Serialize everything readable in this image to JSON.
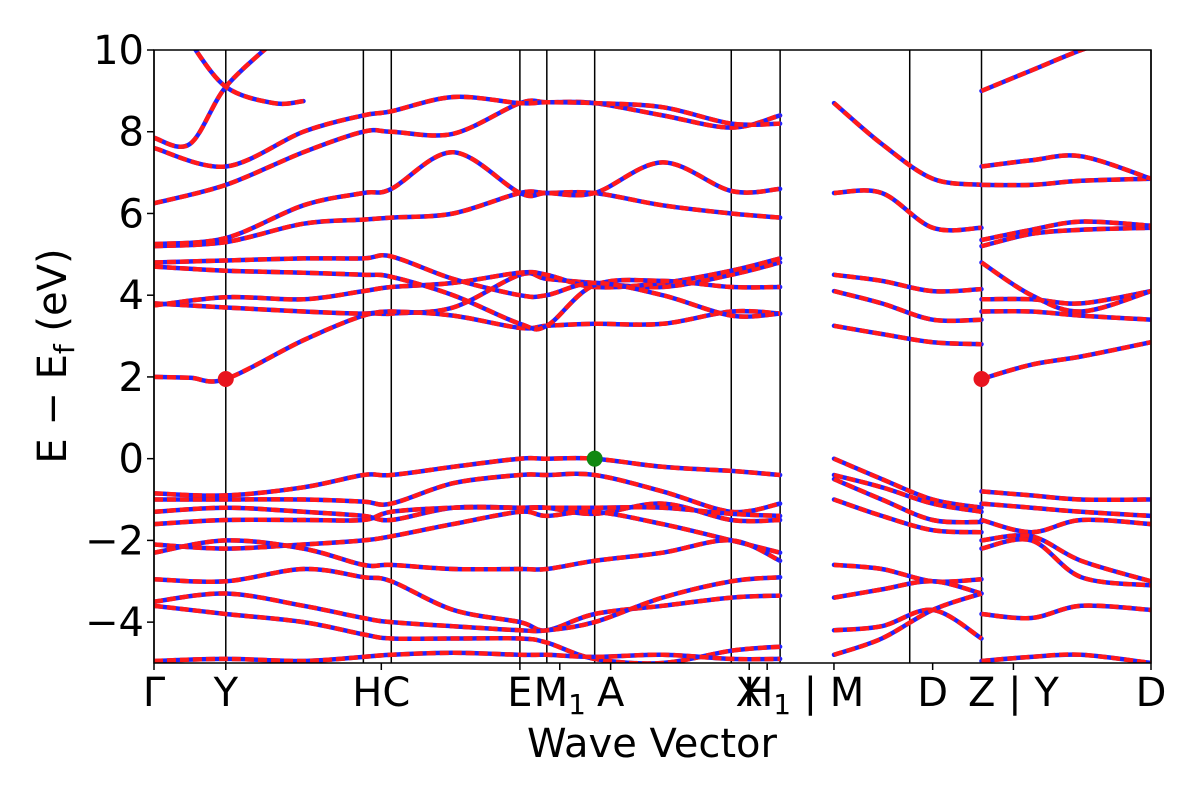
{
  "chart_data": {
    "type": "line",
    "title": "",
    "xlabel": "Wave Vector",
    "ylabel": "E − E",
    "ylabel_sub": "f",
    "ylabel_unit": " (eV)",
    "ylim": [
      -5,
      10
    ],
    "yticks": [
      {
        "value": -4,
        "label": "−4"
      },
      {
        "value": -2,
        "label": "−2"
      },
      {
        "value": 0,
        "label": "0"
      },
      {
        "value": 2,
        "label": "2"
      },
      {
        "value": 4,
        "label": "4"
      },
      {
        "value": 6,
        "label": "6"
      },
      {
        "value": 8,
        "label": "8"
      },
      {
        "value": 10,
        "label": "10"
      }
    ],
    "kpoint_labels": [
      {
        "label": "Γ",
        "sub": "",
        "pos": 0.0
      },
      {
        "label": "Y",
        "sub": "",
        "pos": 0.072
      },
      {
        "label": "HC",
        "sub": "",
        "pos": 0.228
      },
      {
        "label": "E",
        "sub": "",
        "pos": 0.367
      },
      {
        "label": "M",
        "sub": "1",
        "pos": 0.407
      },
      {
        "label": "A",
        "sub": "",
        "pos": 0.458
      },
      {
        "label": "X",
        "sub": "",
        "pos": 0.597
      },
      {
        "label": "H",
        "sub": "1",
        "pos": 0.615
      },
      {
        "label": "| M",
        "sub": "",
        "pos": 0.682
      },
      {
        "label": "D",
        "sub": "",
        "pos": 0.781
      },
      {
        "label": "Z | Y",
        "sub": "",
        "pos": 0.862
      },
      {
        "label": "D",
        "sub": "",
        "pos": 1.0
      }
    ],
    "kpoint_lines": [
      0.0,
      0.072,
      0.21,
      0.238,
      0.367,
      0.394,
      0.442,
      0.579,
      0.628,
      0.758,
      0.83,
      1.0
    ],
    "colors": {
      "band_primary": "#ff1a1a",
      "band_secondary": "#2222ff",
      "cbm_marker": "#e8141e",
      "vbm_marker": "#118811"
    },
    "markers": [
      {
        "name": "cbm",
        "x": 0.072,
        "y": 1.95,
        "color": "#e8141e"
      },
      {
        "name": "cbm",
        "x": 0.83,
        "y": 1.95,
        "color": "#e8141e"
      },
      {
        "name": "vbm",
        "x": 0.442,
        "y": 0.0,
        "color": "#118811"
      }
    ],
    "series": [
      {
        "x": [
          0,
          0.036,
          0.072,
          0.15,
          0.21,
          0.238,
          0.3,
          0.367,
          0.394,
          0.442,
          0.51,
          0.579,
          0.628
        ],
        "y": [
          2.0,
          1.98,
          1.95,
          2.9,
          3.5,
          3.55,
          3.7,
          4.5,
          4.4,
          4.3,
          4.2,
          4.5,
          4.8
        ]
      },
      {
        "x": [
          0,
          0.072,
          0.15,
          0.21,
          0.238,
          0.3,
          0.367,
          0.394,
          0.442,
          0.51,
          0.579,
          0.628
        ],
        "y": [
          3.8,
          3.7,
          3.6,
          3.55,
          3.6,
          3.5,
          3.2,
          3.25,
          3.3,
          3.3,
          3.6,
          3.55
        ]
      },
      {
        "x": [
          0,
          0.072,
          0.15,
          0.21,
          0.238,
          0.3,
          0.367,
          0.394,
          0.442,
          0.51,
          0.579,
          0.628
        ],
        "y": [
          3.75,
          3.95,
          3.9,
          4.1,
          4.2,
          4.3,
          4.55,
          4.5,
          4.2,
          4.3,
          4.6,
          4.9
        ]
      },
      {
        "x": [
          0,
          0.072,
          0.15,
          0.21,
          0.238,
          0.3,
          0.367,
          0.394,
          0.442,
          0.51,
          0.579,
          0.628
        ],
        "y": [
          4.7,
          4.6,
          4.55,
          4.5,
          4.45,
          4.0,
          3.3,
          3.25,
          4.25,
          4.35,
          4.2,
          4.2
        ]
      },
      {
        "x": [
          0,
          0.072,
          0.15,
          0.21,
          0.238,
          0.3,
          0.367,
          0.394,
          0.442,
          0.51,
          0.579,
          0.628
        ],
        "y": [
          4.8,
          4.85,
          4.9,
          4.9,
          4.95,
          4.4,
          4.0,
          4.0,
          4.3,
          4.0,
          3.5,
          3.55
        ]
      },
      {
        "x": [
          0,
          0.072,
          0.15,
          0.21,
          0.238,
          0.3,
          0.367,
          0.394,
          0.442,
          0.51,
          0.579,
          0.628
        ],
        "y": [
          5.2,
          5.3,
          5.75,
          5.85,
          5.9,
          6.0,
          6.5,
          6.5,
          6.5,
          6.2,
          6.0,
          5.9
        ]
      },
      {
        "x": [
          0,
          0.072,
          0.15,
          0.21,
          0.238,
          0.3,
          0.367,
          0.394,
          0.442,
          0.51,
          0.579,
          0.628
        ],
        "y": [
          5.25,
          5.4,
          6.2,
          6.5,
          6.6,
          7.5,
          6.5,
          6.5,
          6.5,
          7.25,
          6.55,
          6.6
        ]
      },
      {
        "x": [
          0,
          0.072,
          0.15,
          0.21,
          0.238,
          0.3,
          0.367,
          0.394,
          0.442,
          0.51,
          0.579,
          0.628
        ],
        "y": [
          6.25,
          6.7,
          7.5,
          8.0,
          8.0,
          7.95,
          8.7,
          8.72,
          8.7,
          8.4,
          8.1,
          8.4
        ]
      },
      {
        "x": [
          0,
          0.072,
          0.15,
          0.21,
          0.238,
          0.3,
          0.367,
          0.394,
          0.442,
          0.51,
          0.579,
          0.628
        ],
        "y": [
          7.6,
          7.15,
          8.0,
          8.4,
          8.5,
          8.85,
          8.7,
          8.72,
          8.7,
          8.6,
          8.2,
          8.2
        ]
      },
      {
        "x": [
          0,
          0.036,
          0.072,
          0.12
        ],
        "y": [
          7.85,
          7.7,
          9.1,
          10.2
        ]
      },
      {
        "x": [
          0.036,
          0.072,
          0.12,
          0.15
        ],
        "y": [
          10.2,
          9.1,
          8.7,
          8.75
        ]
      },
      {
        "x": [
          0,
          0.072,
          0.15,
          0.21,
          0.238,
          0.3,
          0.367,
          0.394,
          0.442,
          0.51,
          0.579,
          0.628
        ],
        "y": [
          -0.85,
          -0.9,
          -0.7,
          -0.4,
          -0.4,
          -0.2,
          0.0,
          0.0,
          0.0,
          -0.2,
          -0.3,
          -0.4
        ]
      },
      {
        "x": [
          0,
          0.072,
          0.15,
          0.21,
          0.238,
          0.3,
          0.367,
          0.394,
          0.442,
          0.51,
          0.579,
          0.628
        ],
        "y": [
          -1.0,
          -1.0,
          -1.0,
          -1.05,
          -1.1,
          -0.6,
          -0.4,
          -0.4,
          -0.4,
          -0.8,
          -1.3,
          -1.1
        ]
      },
      {
        "x": [
          0,
          0.072,
          0.15,
          0.21,
          0.238,
          0.3,
          0.367,
          0.394,
          0.442,
          0.51,
          0.579,
          0.628
        ],
        "y": [
          -1.3,
          -1.2,
          -1.3,
          -1.4,
          -1.5,
          -1.2,
          -1.2,
          -1.2,
          -1.35,
          -1.1,
          -1.5,
          -1.5
        ]
      },
      {
        "x": [
          0,
          0.072,
          0.15,
          0.21,
          0.238,
          0.3,
          0.367,
          0.394,
          0.442,
          0.51,
          0.579,
          0.628
        ],
        "y": [
          -1.6,
          -1.5,
          -1.5,
          -1.5,
          -1.3,
          -1.2,
          -1.2,
          -1.2,
          -1.2,
          -1.2,
          -1.35,
          -1.4
        ]
      },
      {
        "x": [
          0,
          0.072,
          0.15,
          0.21,
          0.238,
          0.3,
          0.367,
          0.394,
          0.442,
          0.51,
          0.579,
          0.628
        ],
        "y": [
          -2.1,
          -2.2,
          -2.1,
          -2.0,
          -1.9,
          -1.6,
          -1.3,
          -1.4,
          -1.3,
          -1.6,
          -2.0,
          -2.3
        ]
      },
      {
        "x": [
          0,
          0.072,
          0.15,
          0.21,
          0.238,
          0.3,
          0.367,
          0.394,
          0.442,
          0.51,
          0.579,
          0.628
        ],
        "y": [
          -2.3,
          -2.0,
          -2.2,
          -2.6,
          -2.6,
          -2.7,
          -2.7,
          -2.7,
          -2.5,
          -2.3,
          -2.0,
          -2.5
        ]
      },
      {
        "x": [
          0,
          0.072,
          0.15,
          0.21,
          0.238,
          0.3,
          0.367,
          0.394,
          0.442,
          0.51,
          0.579,
          0.628
        ],
        "y": [
          -2.95,
          -3.0,
          -2.7,
          -2.9,
          -3.0,
          -3.7,
          -4.0,
          -4.2,
          -3.8,
          -3.6,
          -3.4,
          -3.35
        ]
      },
      {
        "x": [
          0,
          0.072,
          0.15,
          0.21,
          0.238,
          0.3,
          0.367,
          0.394,
          0.442,
          0.51,
          0.579,
          0.628
        ],
        "y": [
          -3.5,
          -3.3,
          -3.6,
          -3.9,
          -4.0,
          -4.1,
          -4.2,
          -4.2,
          -4.0,
          -3.4,
          -3.0,
          -2.9
        ]
      },
      {
        "x": [
          0,
          0.072,
          0.15,
          0.21,
          0.238,
          0.3,
          0.367,
          0.394,
          0.442,
          0.51,
          0.579,
          0.628
        ],
        "y": [
          -3.6,
          -3.8,
          -4.0,
          -4.3,
          -4.4,
          -4.4,
          -4.4,
          -4.5,
          -4.9,
          -5.0,
          -4.7,
          -4.6
        ]
      },
      {
        "x": [
          0,
          0.072,
          0.15,
          0.21,
          0.238,
          0.3,
          0.367,
          0.394,
          0.442,
          0.51,
          0.579,
          0.628
        ],
        "y": [
          -4.95,
          -4.9,
          -4.95,
          -4.85,
          -4.8,
          -4.75,
          -4.8,
          -4.8,
          -4.85,
          -4.8,
          -4.9,
          -4.9
        ]
      },
      {
        "x": [
          0.682,
          0.73,
          0.781,
          0.83
        ],
        "y": [
          8.7,
          7.7,
          6.85,
          6.7
        ]
      },
      {
        "x": [
          0.682,
          0.73,
          0.781,
          0.83
        ],
        "y": [
          6.5,
          6.5,
          5.65,
          5.65
        ]
      },
      {
        "x": [
          0.682,
          0.73,
          0.781,
          0.83
        ],
        "y": [
          4.5,
          4.35,
          4.1,
          4.15
        ]
      },
      {
        "x": [
          0.682,
          0.73,
          0.781,
          0.83
        ],
        "y": [
          4.1,
          3.8,
          3.4,
          3.4
        ]
      },
      {
        "x": [
          0.682,
          0.73,
          0.781,
          0.83
        ],
        "y": [
          3.25,
          3.05,
          2.85,
          2.8
        ]
      },
      {
        "x": [
          0.682,
          0.73,
          0.781,
          0.83
        ],
        "y": [
          0.0,
          -0.5,
          -1.0,
          -1.2
        ]
      },
      {
        "x": [
          0.682,
          0.73,
          0.781,
          0.83
        ],
        "y": [
          -0.4,
          -0.7,
          -1.1,
          -1.3
        ]
      },
      {
        "x": [
          0.682,
          0.73,
          0.781,
          0.83
        ],
        "y": [
          -0.5,
          -1.0,
          -1.5,
          -1.55
        ]
      },
      {
        "x": [
          0.682,
          0.73,
          0.781,
          0.83
        ],
        "y": [
          -1.0,
          -1.4,
          -1.75,
          -1.8
        ]
      },
      {
        "x": [
          0.682,
          0.73,
          0.781,
          0.83
        ],
        "y": [
          -2.6,
          -2.7,
          -3.0,
          -2.95
        ]
      },
      {
        "x": [
          0.682,
          0.73,
          0.781,
          0.83
        ],
        "y": [
          -3.4,
          -3.2,
          -3.0,
          -3.3
        ]
      },
      {
        "x": [
          0.682,
          0.73,
          0.781,
          0.83
        ],
        "y": [
          -4.2,
          -4.1,
          -3.7,
          -4.4
        ]
      },
      {
        "x": [
          0.682,
          0.73,
          0.781,
          0.83
        ],
        "y": [
          -4.8,
          -4.4,
          -3.7,
          -3.3
        ]
      },
      {
        "x": [
          0.83,
          0.88,
          0.93,
          1.0
        ],
        "y": [
          1.95,
          2.3,
          2.5,
          2.85
        ]
      },
      {
        "x": [
          0.83,
          0.88,
          0.93,
          1.0
        ],
        "y": [
          3.6,
          3.6,
          3.5,
          3.4
        ]
      },
      {
        "x": [
          0.83,
          0.88,
          0.93,
          1.0
        ],
        "y": [
          3.9,
          3.9,
          3.8,
          4.1
        ]
      },
      {
        "x": [
          0.83,
          0.88,
          0.93,
          1.0
        ],
        "y": [
          4.8,
          4.0,
          3.6,
          4.1
        ]
      },
      {
        "x": [
          0.83,
          0.88,
          0.93,
          1.0
        ],
        "y": [
          5.2,
          5.5,
          5.6,
          5.65
        ]
      },
      {
        "x": [
          0.83,
          0.88,
          0.93,
          1.0
        ],
        "y": [
          5.35,
          5.6,
          5.8,
          5.7
        ]
      },
      {
        "x": [
          0.83,
          0.88,
          0.93,
          1.0
        ],
        "y": [
          6.7,
          6.7,
          6.8,
          6.85
        ]
      },
      {
        "x": [
          0.83,
          0.88,
          0.93,
          1.0
        ],
        "y": [
          7.15,
          7.3,
          7.4,
          6.85
        ]
      },
      {
        "x": [
          0.83,
          0.88,
          0.93,
          0.96
        ],
        "y": [
          9.0,
          9.5,
          10.0,
          10.2
        ]
      },
      {
        "x": [
          0.83,
          0.88,
          0.93,
          1.0
        ],
        "y": [
          -0.8,
          -0.9,
          -1.0,
          -1.0
        ]
      },
      {
        "x": [
          0.83,
          0.88,
          0.93,
          1.0
        ],
        "y": [
          -1.1,
          -1.2,
          -1.3,
          -1.4
        ]
      },
      {
        "x": [
          0.83,
          0.88,
          0.93,
          1.0
        ],
        "y": [
          -1.5,
          -1.8,
          -1.5,
          -1.6
        ]
      },
      {
        "x": [
          0.83,
          0.88,
          0.93,
          1.0
        ],
        "y": [
          -2.0,
          -1.9,
          -2.5,
          -3.0
        ]
      },
      {
        "x": [
          0.83,
          0.88,
          0.93,
          1.0
        ],
        "y": [
          -2.2,
          -2.0,
          -2.9,
          -3.1
        ]
      },
      {
        "x": [
          0.83,
          0.88,
          0.93,
          1.0
        ],
        "y": [
          -3.8,
          -3.9,
          -3.6,
          -3.7
        ]
      },
      {
        "x": [
          0.83,
          0.88,
          0.93,
          1.0
        ],
        "y": [
          -4.95,
          -4.85,
          -4.8,
          -5.0
        ]
      }
    ]
  }
}
